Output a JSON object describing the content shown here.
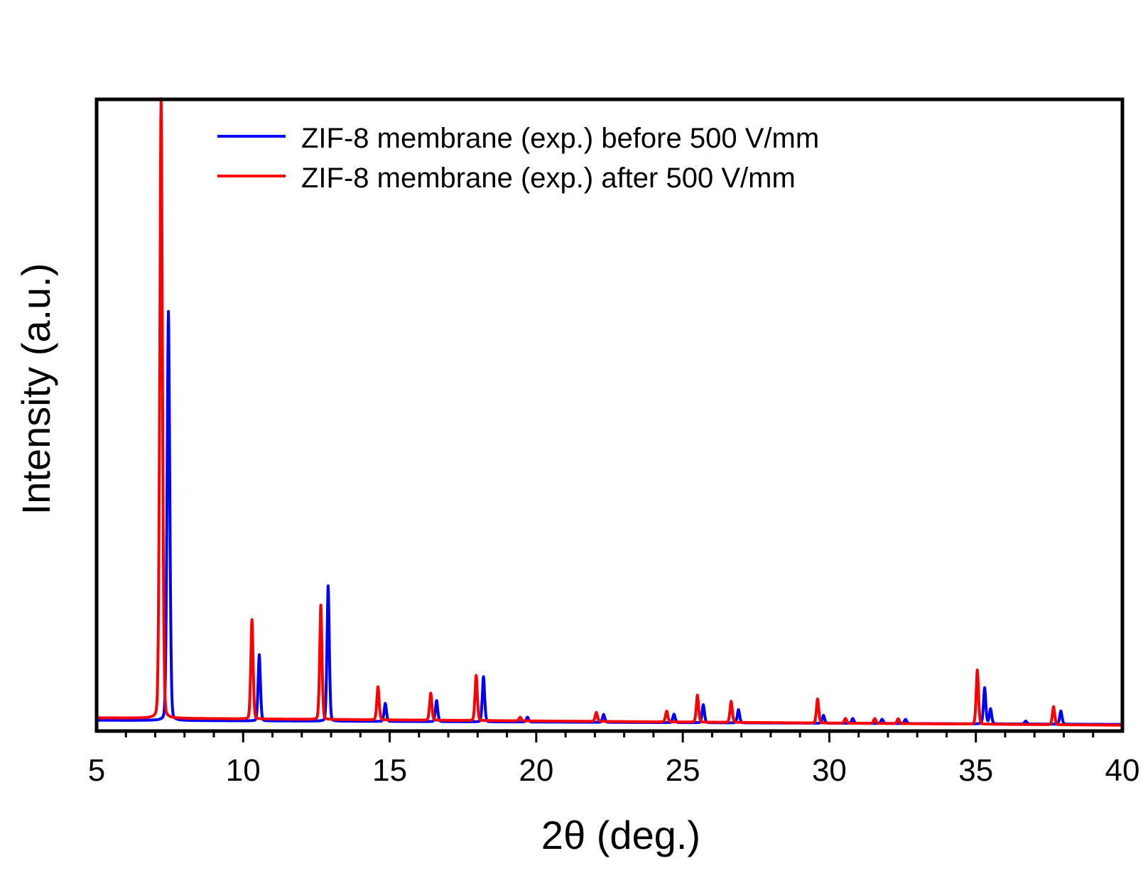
{
  "chart_data": {
    "type": "line",
    "title": "",
    "xlabel": "2θ (deg.)",
    "ylabel": "Intensity (a.u.)",
    "xlim": [
      5,
      40
    ],
    "ylim": [
      0,
      1.05
    ],
    "x_ticks": [
      5,
      10,
      15,
      20,
      25,
      30,
      35,
      40
    ],
    "x_tick_labels": [
      "5",
      "10",
      "15",
      "20",
      "25",
      "30",
      "35",
      "40"
    ],
    "y_ticks_shown": false,
    "grid": false,
    "legend_position": "top-center",
    "series": [
      {
        "name": "ZIF-8 membrane (exp.) before 500 V/mm",
        "color": "#0000ff",
        "peaks": [
          {
            "x": 7.45,
            "y": 0.68
          },
          {
            "x": 10.55,
            "y": 0.11
          },
          {
            "x": 12.9,
            "y": 0.225
          },
          {
            "x": 14.85,
            "y": 0.03
          },
          {
            "x": 16.6,
            "y": 0.035
          },
          {
            "x": 18.2,
            "y": 0.075
          },
          {
            "x": 19.7,
            "y": 0.008
          },
          {
            "x": 22.3,
            "y": 0.013
          },
          {
            "x": 24.7,
            "y": 0.014
          },
          {
            "x": 25.7,
            "y": 0.03
          },
          {
            "x": 26.9,
            "y": 0.022
          },
          {
            "x": 29.8,
            "y": 0.013
          },
          {
            "x": 30.8,
            "y": 0.008
          },
          {
            "x": 31.8,
            "y": 0.007
          },
          {
            "x": 32.6,
            "y": 0.007
          },
          {
            "x": 35.3,
            "y": 0.06
          },
          {
            "x": 35.5,
            "y": 0.025
          },
          {
            "x": 36.7,
            "y": 0.005
          },
          {
            "x": 37.9,
            "y": 0.022
          }
        ]
      },
      {
        "name": "ZIF-8 membrane (exp.) after 500 V/mm",
        "color": "#ff0000",
        "peaks": [
          {
            "x": 7.2,
            "y": 1.03
          },
          {
            "x": 10.3,
            "y": 0.165
          },
          {
            "x": 12.65,
            "y": 0.19
          },
          {
            "x": 14.6,
            "y": 0.055
          },
          {
            "x": 16.4,
            "y": 0.045
          },
          {
            "x": 17.95,
            "y": 0.075
          },
          {
            "x": 19.45,
            "y": 0.006
          },
          {
            "x": 22.05,
            "y": 0.015
          },
          {
            "x": 24.45,
            "y": 0.018
          },
          {
            "x": 25.5,
            "y": 0.045
          },
          {
            "x": 26.65,
            "y": 0.035
          },
          {
            "x": 29.6,
            "y": 0.04
          },
          {
            "x": 30.55,
            "y": 0.008
          },
          {
            "x": 31.55,
            "y": 0.008
          },
          {
            "x": 32.35,
            "y": 0.008
          },
          {
            "x": 35.05,
            "y": 0.09
          },
          {
            "x": 37.65,
            "y": 0.03
          }
        ]
      }
    ]
  }
}
